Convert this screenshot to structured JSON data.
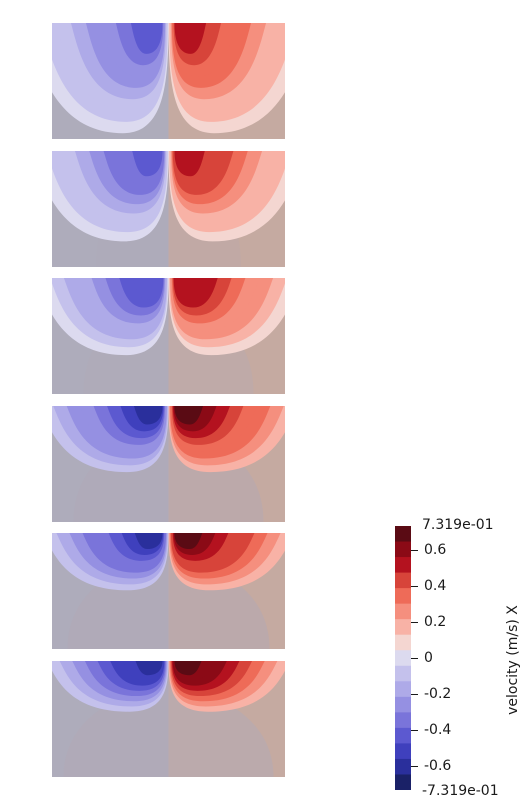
{
  "chart_data": {
    "type": "heatmap",
    "field": "velocity (m/s) X",
    "panel_count": 6,
    "colormap": "Cool to Warm (Extended), discretized",
    "colorbar": {
      "title": "velocity (m/s) X",
      "range": [
        -0.7319,
        0.7319
      ],
      "range_labels": [
        "7.319e-01",
        "-7.319e-01"
      ],
      "ticks": [
        0.6,
        0.4,
        0.2,
        0,
        -0.2,
        -0.4,
        -0.6
      ],
      "tick_labels": [
        "0.6",
        "0.4",
        "0.2",
        "0",
        "-0.2",
        "-0.4",
        "-0.6"
      ],
      "bands": [
        "#5a0b14",
        "#8b0a16",
        "#b4121f",
        "#d7443a",
        "#ee6b58",
        "#f58f7e",
        "#f8b2a6",
        "#f4d6d1",
        "#dcdaef",
        "#c4c1ec",
        "#aeaae8",
        "#9590e2",
        "#7a74da",
        "#5c59d0",
        "#3f40bd",
        "#2a2f9c",
        "#1a2167"
      ]
    },
    "background_colors": {
      "negative": "#aeacbb",
      "positive": "#c5aaa1"
    }
  }
}
